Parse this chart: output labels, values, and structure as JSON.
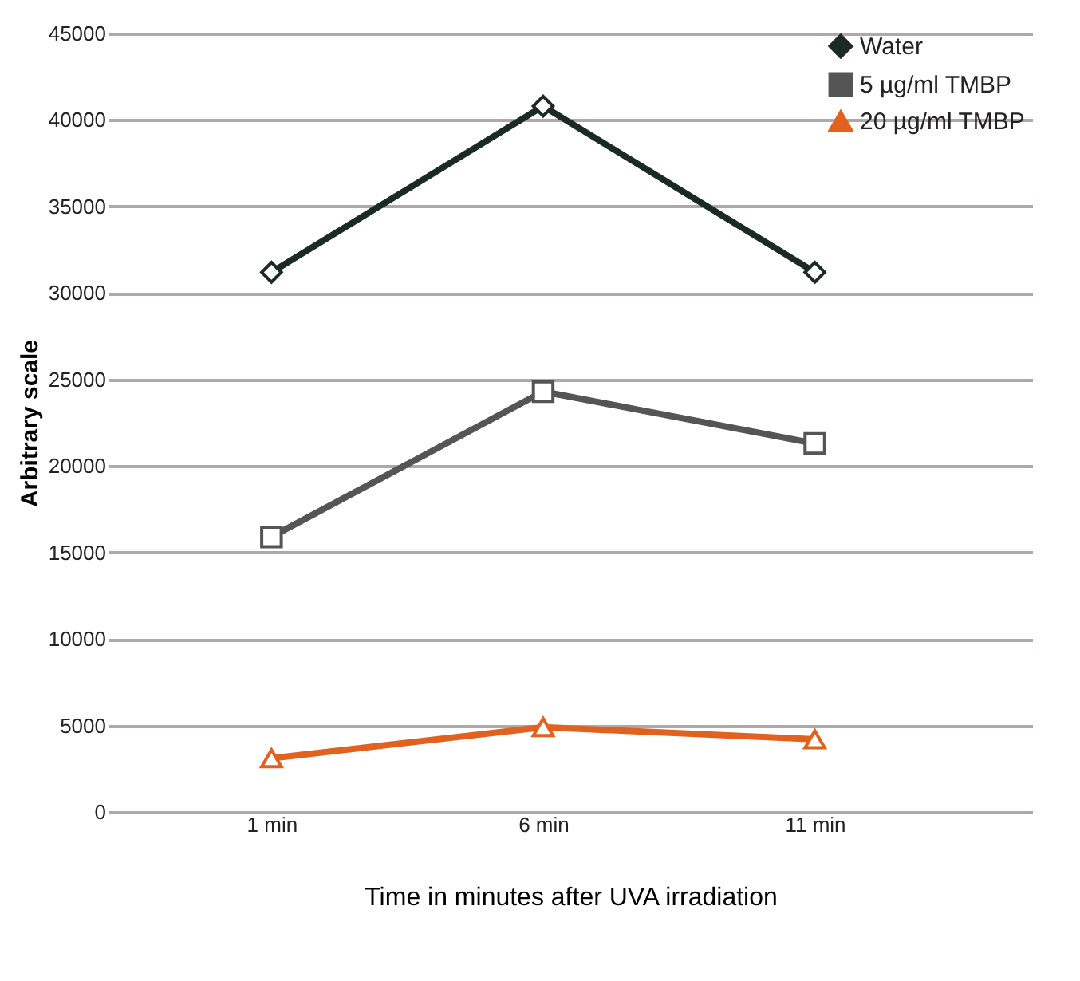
{
  "chart_data": {
    "type": "line",
    "xlabel": "Time in minutes after UVA irradiation",
    "ylabel": "Arbitrary scale",
    "categories": [
      "1 min",
      "6 min",
      "11 min"
    ],
    "series": [
      {
        "name": "Water",
        "color": "#1c2a26",
        "marker": "diamond",
        "values": [
          31200,
          40800,
          31200
        ]
      },
      {
        "name": "5 µg/ml  TMBP",
        "color": "#555555",
        "marker": "square",
        "values": [
          15900,
          24300,
          21300
        ]
      },
      {
        "name": "20 µg/ml  TMBP",
        "color": "#e0621e",
        "marker": "triangle",
        "values": [
          3100,
          4900,
          4200
        ]
      }
    ],
    "ylim": [
      0,
      45000
    ],
    "yticks": [
      0,
      5000,
      10000,
      15000,
      20000,
      25000,
      30000,
      35000,
      40000,
      45000
    ],
    "grid": "y",
    "legend": "top right",
    "line_style": "solid"
  }
}
